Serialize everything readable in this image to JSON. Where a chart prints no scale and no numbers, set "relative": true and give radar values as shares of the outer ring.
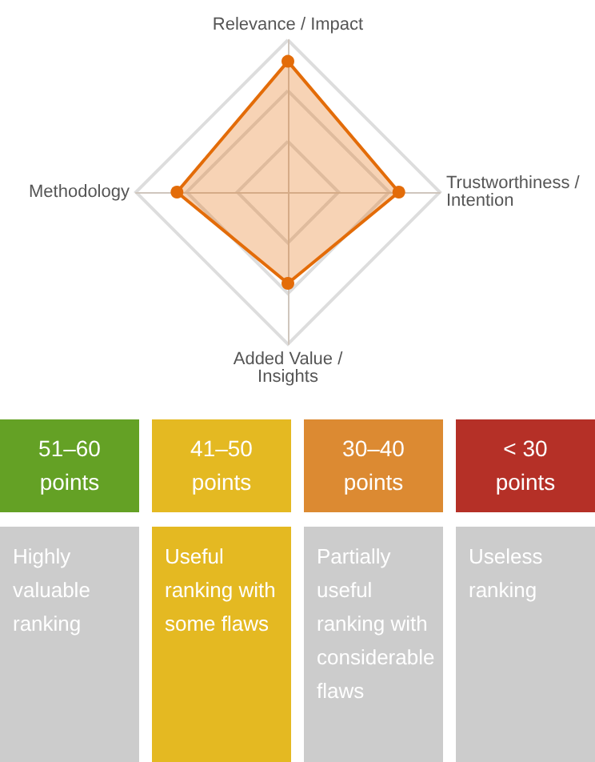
{
  "chart_data": [
    {
      "type": "radar",
      "relative": true,
      "categories": [
        "Relevance / Impact",
        "Trustworthiness / Intention",
        "Added Value / Insights",
        "Methodology"
      ],
      "series": [
        {
          "color": "#e36c09",
          "values": [
            0.86,
            0.73,
            0.6,
            0.73
          ]
        }
      ],
      "marker": "circle"
    },
    {
      "type": "other",
      "categories": [
        "51–60 points",
        "41–50 points",
        "30–40 points",
        "< 30 points"
      ],
      "annotations": [
        "Highly valuable ranking",
        "Useful ranking with some flaws",
        "Partially useful ranking with considerable flaws",
        "Useless ranking"
      ],
      "colors": [
        "#64a125",
        "#e4b922",
        "#dc8a32",
        "#b53027",
        "#cccccc",
        "#e4b922",
        "#cccccc",
        "#cccccc"
      ]
    }
  ]
}
